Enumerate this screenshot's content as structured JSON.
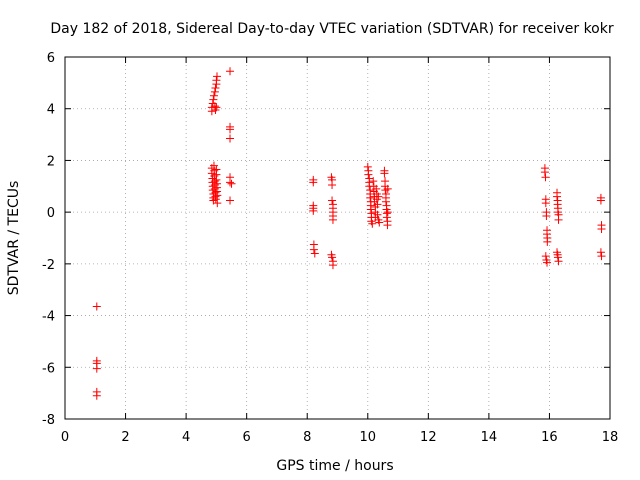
{
  "chart_data": {
    "type": "scatter",
    "title": "Day 182 of 2018, Sidereal Day-to-day VTEC variation (SDTVAR) for receiver kokr",
    "xlabel": "GPS time / hours",
    "ylabel": "SDTVAR / TECUs",
    "xlim": [
      0,
      18
    ],
    "ylim": [
      -8,
      6
    ],
    "xticks": [
      0,
      2,
      4,
      6,
      8,
      10,
      12,
      14,
      16,
      18
    ],
    "yticks": [
      -8,
      -6,
      -4,
      -2,
      0,
      2,
      4,
      6
    ],
    "xtick_labels": [
      "0",
      "2",
      "4",
      "6",
      "8",
      "10",
      "12",
      "14",
      "16",
      "18"
    ],
    "ytick_labels": [
      "-8",
      "-6",
      "-4",
      "-2",
      "0",
      "2",
      "4",
      "6"
    ],
    "grid": true,
    "marker": "+",
    "color": "#ff0000",
    "series": [
      {
        "name": "SDTVAR",
        "points": [
          [
            1.05,
            -3.65
          ],
          [
            1.05,
            -5.75
          ],
          [
            1.05,
            -5.85
          ],
          [
            1.05,
            -6.05
          ],
          [
            1.05,
            -6.95
          ],
          [
            1.05,
            -7.1
          ],
          [
            4.85,
            3.9
          ],
          [
            4.85,
            4.05
          ],
          [
            4.88,
            4.2
          ],
          [
            4.9,
            4.35
          ],
          [
            4.92,
            4.5
          ],
          [
            4.95,
            4.1
          ],
          [
            4.97,
            3.95
          ],
          [
            5.0,
            4.05
          ],
          [
            4.95,
            4.65
          ],
          [
            4.97,
            4.8
          ],
          [
            5.0,
            4.95
          ],
          [
            5.0,
            5.1
          ],
          [
            5.02,
            5.25
          ],
          [
            4.85,
            1.7
          ],
          [
            4.85,
            1.5
          ],
          [
            4.87,
            1.3
          ],
          [
            4.87,
            1.15
          ],
          [
            4.88,
            1.0
          ],
          [
            4.88,
            0.85
          ],
          [
            4.9,
            0.7
          ],
          [
            4.9,
            0.55
          ],
          [
            4.9,
            0.45
          ],
          [
            4.92,
            1.8
          ],
          [
            4.93,
            1.6
          ],
          [
            4.93,
            1.4
          ],
          [
            4.95,
            1.2
          ],
          [
            4.95,
            1.05
          ],
          [
            4.95,
            0.9
          ],
          [
            4.97,
            0.75
          ],
          [
            4.97,
            0.6
          ],
          [
            4.98,
            0.5
          ],
          [
            5.0,
            1.65
          ],
          [
            5.0,
            1.45
          ],
          [
            5.0,
            1.25
          ],
          [
            5.02,
            1.1
          ],
          [
            5.02,
            0.95
          ],
          [
            5.02,
            0.8
          ],
          [
            5.03,
            0.65
          ],
          [
            5.03,
            0.35
          ],
          [
            5.45,
            5.45
          ],
          [
            5.45,
            3.3
          ],
          [
            5.45,
            3.2
          ],
          [
            5.45,
            2.85
          ],
          [
            5.45,
            1.35
          ],
          [
            5.45,
            1.15
          ],
          [
            5.5,
            1.1
          ],
          [
            5.45,
            0.45
          ],
          [
            8.2,
            1.25
          ],
          [
            8.2,
            1.15
          ],
          [
            8.2,
            0.25
          ],
          [
            8.2,
            0.15
          ],
          [
            8.2,
            0.05
          ],
          [
            8.22,
            -1.25
          ],
          [
            8.22,
            -1.45
          ],
          [
            8.25,
            -1.6
          ],
          [
            8.8,
            1.35
          ],
          [
            8.82,
            1.25
          ],
          [
            8.82,
            1.05
          ],
          [
            8.82,
            0.45
          ],
          [
            8.85,
            0.3
          ],
          [
            8.85,
            0.15
          ],
          [
            8.85,
            0.0
          ],
          [
            8.85,
            -0.15
          ],
          [
            8.85,
            -0.3
          ],
          [
            8.8,
            -1.65
          ],
          [
            8.82,
            -1.75
          ],
          [
            8.85,
            -1.9
          ],
          [
            8.85,
            -2.05
          ],
          [
            10.0,
            1.75
          ],
          [
            10.02,
            1.6
          ],
          [
            10.02,
            1.45
          ],
          [
            10.05,
            1.3
          ],
          [
            10.05,
            1.15
          ],
          [
            10.05,
            1.0
          ],
          [
            10.08,
            0.85
          ],
          [
            10.08,
            0.7
          ],
          [
            10.08,
            0.55
          ],
          [
            10.1,
            0.4
          ],
          [
            10.1,
            0.25
          ],
          [
            10.1,
            0.1
          ],
          [
            10.12,
            -0.05
          ],
          [
            10.12,
            -0.2
          ],
          [
            10.12,
            -0.35
          ],
          [
            10.15,
            -0.45
          ],
          [
            10.18,
            1.2
          ],
          [
            10.2,
            1.0
          ],
          [
            10.2,
            0.8
          ],
          [
            10.22,
            0.6
          ],
          [
            10.22,
            0.4
          ],
          [
            10.25,
            0.2
          ],
          [
            10.25,
            0.0
          ],
          [
            10.25,
            -0.2
          ],
          [
            10.28,
            0.9
          ],
          [
            10.3,
            0.7
          ],
          [
            10.3,
            0.5
          ],
          [
            10.32,
            0.3
          ],
          [
            10.32,
            -0.1
          ],
          [
            10.35,
            -0.3
          ],
          [
            10.35,
            0.6
          ],
          [
            10.38,
            -0.4
          ],
          [
            10.55,
            1.6
          ],
          [
            10.55,
            1.5
          ],
          [
            10.57,
            1.2
          ],
          [
            10.57,
            1.0
          ],
          [
            10.58,
            0.85
          ],
          [
            10.6,
            0.7
          ],
          [
            10.6,
            0.55
          ],
          [
            10.6,
            0.4
          ],
          [
            10.62,
            0.25
          ],
          [
            10.62,
            0.1
          ],
          [
            10.63,
            -0.05
          ],
          [
            10.63,
            -0.2
          ],
          [
            10.65,
            -0.35
          ],
          [
            10.65,
            -0.5
          ],
          [
            10.66,
            0.9
          ],
          [
            10.66,
            0.0
          ],
          [
            15.85,
            1.7
          ],
          [
            15.85,
            1.55
          ],
          [
            15.87,
            1.35
          ],
          [
            15.88,
            0.5
          ],
          [
            15.88,
            0.35
          ],
          [
            15.9,
            0.0
          ],
          [
            15.9,
            -0.15
          ],
          [
            15.92,
            -0.7
          ],
          [
            15.92,
            -0.85
          ],
          [
            15.93,
            -1.0
          ],
          [
            15.93,
            -1.15
          ],
          [
            15.88,
            -1.7
          ],
          [
            15.9,
            -1.85
          ],
          [
            15.92,
            -1.95
          ],
          [
            16.25,
            0.75
          ],
          [
            16.25,
            0.6
          ],
          [
            16.27,
            0.45
          ],
          [
            16.27,
            0.3
          ],
          [
            16.28,
            0.15
          ],
          [
            16.28,
            0.0
          ],
          [
            16.3,
            -0.1
          ],
          [
            16.3,
            -0.3
          ],
          [
            16.25,
            -1.55
          ],
          [
            16.27,
            -1.65
          ],
          [
            16.28,
            -1.75
          ],
          [
            16.3,
            -1.9
          ],
          [
            17.7,
            0.55
          ],
          [
            17.7,
            0.45
          ],
          [
            17.72,
            -0.5
          ],
          [
            17.72,
            -0.65
          ],
          [
            17.7,
            -1.55
          ],
          [
            17.72,
            -1.7
          ]
        ]
      }
    ]
  }
}
